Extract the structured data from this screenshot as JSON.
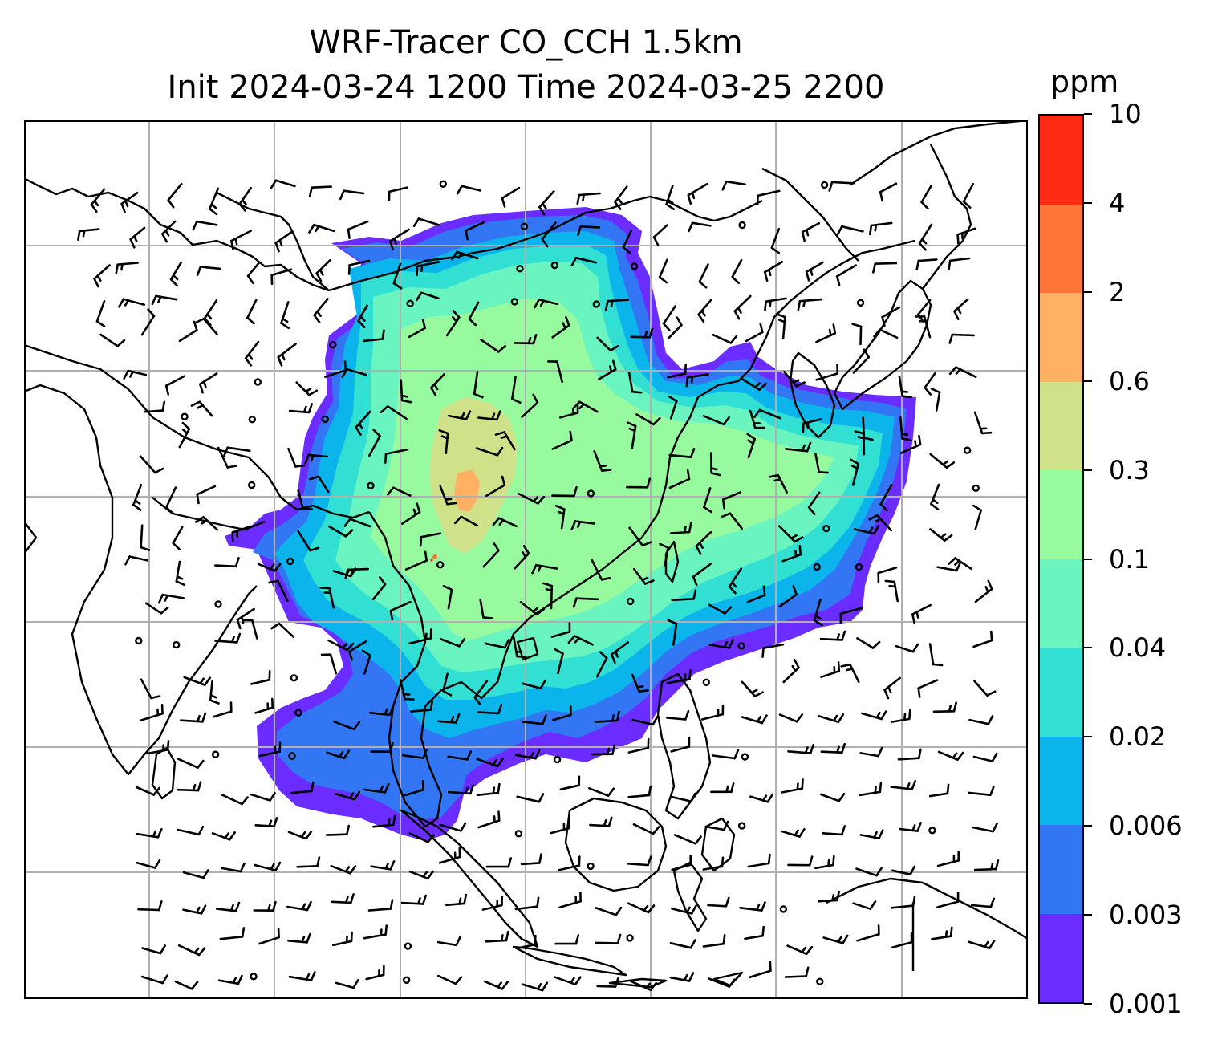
{
  "title": {
    "line1": "WRF-Tracer CO_CCH 1.5km",
    "line2": "Init 2024-03-24 1200 Time 2024-03-25 2200"
  },
  "colorbar": {
    "unit": "ppm",
    "levels": [
      "0.001",
      "0.003",
      "0.006",
      "0.02",
      "0.04",
      "0.1",
      "0.3",
      "0.6",
      "2",
      "4",
      "10"
    ],
    "colors": [
      "#6a2cff",
      "#3276f3",
      "#0bb5eb",
      "#31dfd3",
      "#6af5c0",
      "#98fa9f",
      "#cfe28a",
      "#ffb062",
      "#ff7437",
      "#ff2a14"
    ]
  },
  "map": {
    "projection": "lat-lon with gridlines",
    "gridlines": true,
    "coastline_color": "#000000",
    "grid_color": "#b0b0b0",
    "overlay": "wind barbs"
  }
}
